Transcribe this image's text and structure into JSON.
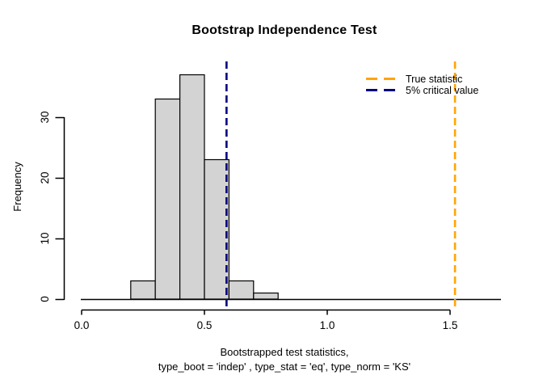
{
  "title": "Bootstrap Independence Test",
  "axes": {
    "x_label_line1": "Bootstrapped test statistics,",
    "x_label_line2": "type_boot = 'indep' , type_stat = 'eq', type_norm = 'KS'",
    "y_label": "Frequency",
    "x_ticks": [
      0.0,
      0.5,
      1.0,
      1.5
    ],
    "x_tick_labels": [
      "0.0",
      "0.5",
      "1.0",
      "1.5"
    ],
    "y_ticks": [
      0,
      10,
      20,
      30
    ],
    "y_tick_labels": [
      "0",
      "10",
      "20",
      "30"
    ]
  },
  "legend": {
    "items": [
      {
        "label": "True statistic",
        "color": "#FFA500"
      },
      {
        "label": "5% critical value",
        "color": "#000080"
      }
    ]
  },
  "colors": {
    "bar_fill": "#D3D3D3",
    "bar_stroke": "#000000",
    "axis": "#000000",
    "true_statistic_line": "#FFA500",
    "critical_value_line": "#000080"
  },
  "chart_data": {
    "type": "bar",
    "subtype": "histogram",
    "title": "Bootstrap Independence Test",
    "xlabel": "Bootstrapped test statistics, type_boot = 'indep' , type_stat = 'eq', type_norm = 'KS'",
    "ylabel": "Frequency",
    "bin_edges": [
      0.2,
      0.3,
      0.4,
      0.5,
      0.6,
      0.7,
      0.8
    ],
    "frequencies": [
      3,
      33,
      37,
      23,
      3,
      1
    ],
    "total_count": 100,
    "xlim": [
      0.0,
      1.7
    ],
    "ylim": [
      0,
      38
    ],
    "x_ticks": [
      0.0,
      0.5,
      1.0,
      1.5
    ],
    "y_ticks": [
      0,
      10,
      20,
      30
    ],
    "grid": false,
    "legend_position": "top-right",
    "vlines": [
      {
        "name": "true-statistic",
        "value": 1.52,
        "color": "#FFA500",
        "style": "dashed",
        "label": "True statistic"
      },
      {
        "name": "critical-value-5pct",
        "value": 0.59,
        "color": "#000080",
        "style": "dashed",
        "label": "5% critical value"
      }
    ],
    "baseline": {
      "y": 0,
      "draw": true
    }
  }
}
